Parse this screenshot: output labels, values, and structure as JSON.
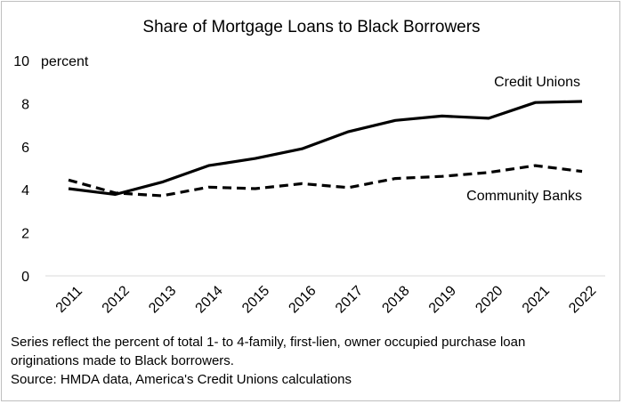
{
  "chart_data": {
    "type": "line",
    "title": "Share of Mortgage Loans to Black Borrowers",
    "ylabel": "percent",
    "xlabel": "",
    "ylim": [
      0,
      10
    ],
    "yticks": [
      0,
      2,
      4,
      6,
      8,
      10
    ],
    "categories": [
      "2011",
      "2012",
      "2013",
      "2014",
      "2015",
      "2016",
      "2017",
      "2018",
      "2019",
      "2020",
      "2021",
      "2022"
    ],
    "grid": false,
    "legend": "none",
    "series": [
      {
        "name": "Credit Unions",
        "style": "solid",
        "color": "#000000",
        "values": [
          4.05,
          3.78,
          4.35,
          5.12,
          5.45,
          5.9,
          6.7,
          7.22,
          7.42,
          7.32,
          8.05,
          8.1
        ]
      },
      {
        "name": "Community Banks",
        "style": "dashed",
        "color": "#000000",
        "values": [
          4.45,
          3.85,
          3.72,
          4.12,
          4.05,
          4.28,
          4.1,
          4.52,
          4.62,
          4.8,
          5.12,
          4.85
        ]
      }
    ]
  },
  "notes": {
    "line1": "Series reflect the percent of total 1- to 4-family, first-lien, owner occupied purchase loan",
    "line2": "originations made to Black borrowers.",
    "line3": "Source: HMDA data, America's Credit Unions calculations"
  }
}
